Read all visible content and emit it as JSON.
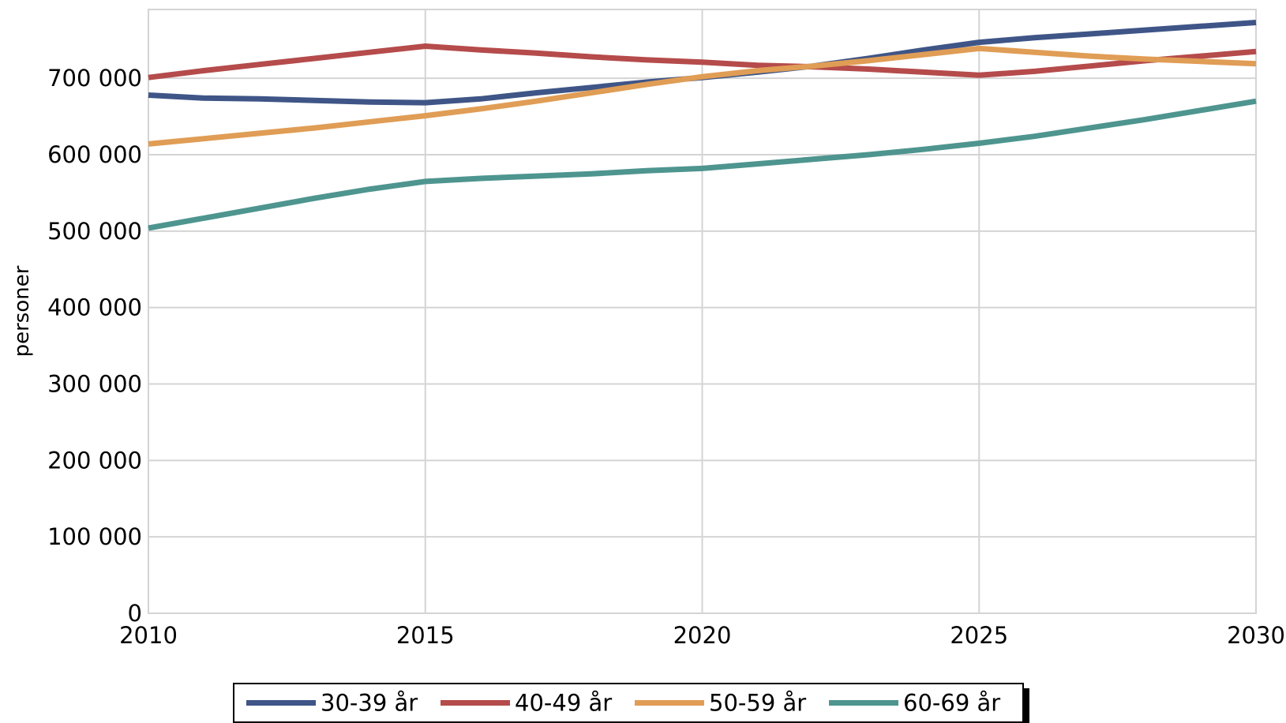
{
  "chart_data": {
    "type": "line",
    "title": "",
    "xlabel": "",
    "ylabel": "personer",
    "xlim": [
      2010,
      2030
    ],
    "ylim": [
      0,
      790000
    ],
    "x_ticks": [
      2010,
      2015,
      2020,
      2025,
      2030
    ],
    "x_tick_labels": [
      "2010",
      "2015",
      "2020",
      "2025",
      "2030"
    ],
    "y_ticks": [
      0,
      100000,
      200000,
      300000,
      400000,
      500000,
      600000,
      700000
    ],
    "y_tick_labels": [
      "0",
      "100 000",
      "200 000",
      "300 000",
      "400 000",
      "500 000",
      "600 000",
      "700 000"
    ],
    "grid": true,
    "legend_position": "bottom",
    "x": [
      2010,
      2011,
      2012,
      2013,
      2014,
      2015,
      2016,
      2017,
      2018,
      2019,
      2020,
      2021,
      2022,
      2023,
      2024,
      2025,
      2026,
      2027,
      2028,
      2029,
      2030
    ],
    "series": [
      {
        "name": "30-39 år",
        "color": "#3f5587",
        "values": [
          678000,
          674000,
          673000,
          671000,
          669000,
          668000,
          673000,
          681000,
          688000,
          695000,
          701000,
          708000,
          716000,
          726000,
          737000,
          747000,
          753000,
          758000,
          763000,
          768000,
          773000
        ]
      },
      {
        "name": "40-49 år",
        "color": "#b54b4b",
        "values": [
          701000,
          710000,
          718000,
          726000,
          734000,
          742000,
          737000,
          733000,
          728000,
          724000,
          721000,
          717000,
          715000,
          712000,
          708000,
          704000,
          709000,
          716000,
          723000,
          729000,
          735000
        ]
      },
      {
        "name": "50-59 år",
        "color": "#e09d55",
        "values": [
          614000,
          621000,
          628000,
          635000,
          643000,
          651000,
          660000,
          670000,
          681000,
          692000,
          702000,
          710000,
          716000,
          723000,
          731000,
          739000,
          734000,
          729000,
          725000,
          722000,
          719000
        ]
      },
      {
        "name": "60-69 år",
        "color": "#4e958f",
        "values": [
          504000,
          517000,
          530000,
          543000,
          555000,
          565000,
          569000,
          572000,
          575000,
          579000,
          582000,
          588000,
          594000,
          600000,
          607000,
          615000,
          624000,
          635000,
          646000,
          658000,
          670000
        ]
      }
    ]
  }
}
